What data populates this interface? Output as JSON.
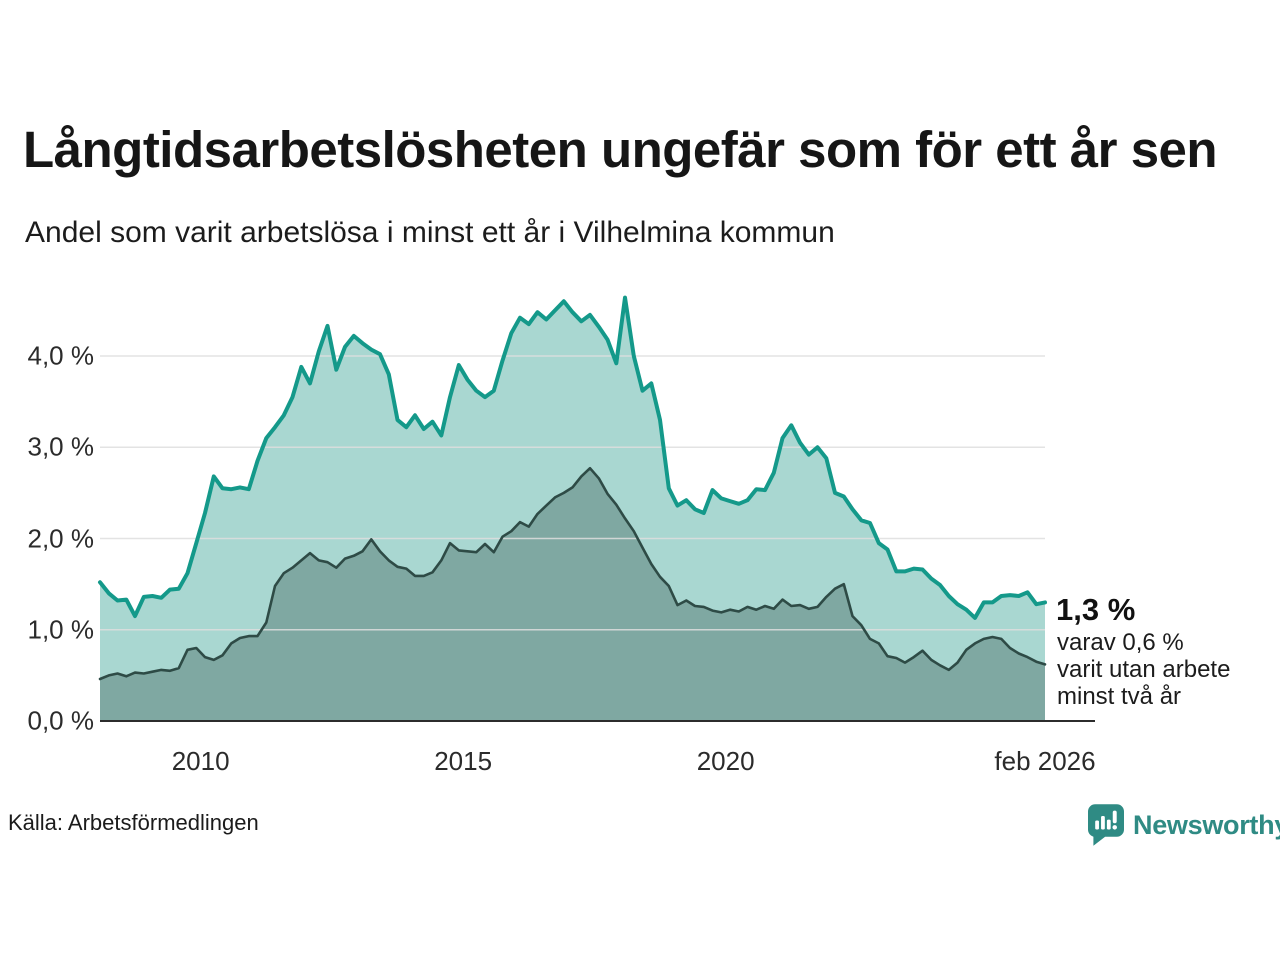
{
  "header": {
    "title": "Långtidsarbetslösheten ungefär som för ett år sen",
    "subtitle": "Andel som varit arbetslösa i minst ett år i Vilhelmina kommun"
  },
  "chart_data": {
    "type": "area",
    "title": "Långtidsarbetslösheten ungefär som för ett år sen",
    "unit": "%",
    "grid": true,
    "legend": "none",
    "x_start": 2008.083,
    "x_end": 2026.083,
    "x_step_years": 0.1667,
    "ylim": [
      0,
      4.8
    ],
    "x_ticks": [
      {
        "x": 2010.0,
        "label": "2010"
      },
      {
        "x": 2015.0,
        "label": "2015"
      },
      {
        "x": 2020.0,
        "label": "2020"
      },
      {
        "x": 2026.083,
        "label": "feb 2026"
      }
    ],
    "y_ticks": [
      {
        "v": 0,
        "label": "0,0 %"
      },
      {
        "v": 1,
        "label": "1,0 %"
      },
      {
        "v": 2,
        "label": "2,0 %"
      },
      {
        "v": 3,
        "label": "3,0 %"
      },
      {
        "v": 4,
        "label": "4,0 %"
      }
    ],
    "series": [
      {
        "name": "Andel som varit arbetslösa i minst ett år",
        "line_color": "#14998a",
        "fill_color": "#a9d7d1",
        "line_width": 4,
        "end_value": 1.3,
        "values": [
          1.52,
          1.4,
          1.32,
          1.33,
          1.15,
          1.36,
          1.37,
          1.35,
          1.44,
          1.45,
          1.62,
          1.95,
          2.28,
          2.68,
          2.55,
          2.54,
          2.56,
          2.54,
          2.85,
          3.1,
          3.22,
          3.35,
          3.55,
          3.88,
          3.7,
          4.05,
          4.33,
          3.85,
          4.1,
          4.22,
          4.14,
          4.07,
          4.02,
          3.8,
          3.3,
          3.22,
          3.35,
          3.2,
          3.28,
          3.13,
          3.55,
          3.9,
          3.74,
          3.62,
          3.55,
          3.62,
          3.95,
          4.25,
          4.42,
          4.35,
          4.48,
          4.4,
          4.5,
          4.6,
          4.48,
          4.38,
          4.45,
          4.32,
          4.18,
          3.92,
          4.64,
          4.0,
          3.62,
          3.7,
          3.3,
          2.55,
          2.36,
          2.42,
          2.32,
          2.28,
          2.53,
          2.44,
          2.41,
          2.38,
          2.42,
          2.54,
          2.53,
          2.72,
          3.1,
          3.24,
          3.05,
          2.92,
          3.0,
          2.88,
          2.5,
          2.46,
          2.32,
          2.2,
          2.17,
          1.95,
          1.88,
          1.64,
          1.64,
          1.67,
          1.66,
          1.56,
          1.49,
          1.37,
          1.28,
          1.22,
          1.13,
          1.3,
          1.3,
          1.37,
          1.38,
          1.37,
          1.41,
          1.28,
          1.3
        ]
      },
      {
        "name": "varav utan arbete minst två år",
        "line_color": "#2e4b46",
        "fill_color": "#7fa8a2",
        "line_width": 2.6,
        "end_value": 0.6,
        "values": [
          0.46,
          0.5,
          0.52,
          0.49,
          0.53,
          0.52,
          0.54,
          0.56,
          0.55,
          0.58,
          0.78,
          0.8,
          0.7,
          0.67,
          0.72,
          0.85,
          0.91,
          0.93,
          0.93,
          1.08,
          1.48,
          1.62,
          1.68,
          1.76,
          1.84,
          1.76,
          1.74,
          1.68,
          1.78,
          1.81,
          1.86,
          1.99,
          1.86,
          1.76,
          1.69,
          1.67,
          1.59,
          1.59,
          1.63,
          1.76,
          1.95,
          1.87,
          1.86,
          1.85,
          1.94,
          1.85,
          2.02,
          2.08,
          2.18,
          2.13,
          2.27,
          2.36,
          2.45,
          2.5,
          2.56,
          2.68,
          2.77,
          2.66,
          2.49,
          2.37,
          2.22,
          2.08,
          1.9,
          1.72,
          1.58,
          1.48,
          1.27,
          1.32,
          1.26,
          1.25,
          1.21,
          1.19,
          1.22,
          1.2,
          1.25,
          1.22,
          1.26,
          1.23,
          1.33,
          1.26,
          1.27,
          1.23,
          1.25,
          1.36,
          1.45,
          1.5,
          1.15,
          1.05,
          0.9,
          0.85,
          0.71,
          0.69,
          0.64,
          0.7,
          0.77,
          0.67,
          0.61,
          0.56,
          0.64,
          0.78,
          0.85,
          0.9,
          0.92,
          0.9,
          0.8,
          0.74,
          0.7,
          0.65,
          0.62
        ]
      }
    ],
    "annotation": {
      "value_label": "1,3 %",
      "detail_lines": [
        "varav 0,6 %",
        "varit utan arbete",
        "minst två år"
      ]
    }
  },
  "footer": {
    "source": "Källa: Arbetsförmedlingen",
    "brand": "Newsworthy"
  },
  "colors": {
    "accent_teal": "#14998a",
    "light_fill": "#a9d7d1",
    "dark_line": "#2e4b46",
    "dark_fill": "#7fa8a2",
    "gridline": "#dfdfdf",
    "axis": "#2c2c2c",
    "brand_teal": "#2f8b84"
  }
}
